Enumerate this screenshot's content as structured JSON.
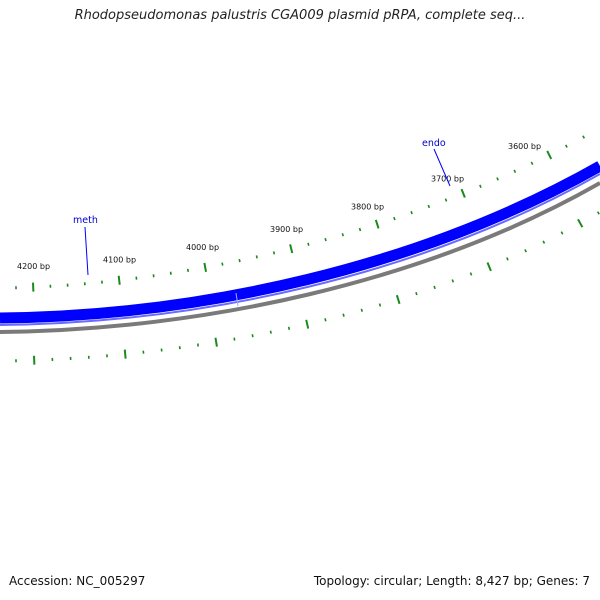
{
  "title": "Rhodopseudomonas palustris CGA009 plasmid pRPA, complete seq...",
  "footer": {
    "accession": "Accession: NC_005297",
    "summary": "Topology: circular; Length: 8,427 bp; Genes: 7"
  },
  "colors": {
    "gene_track": "#0000ff",
    "backbone": "#808080",
    "ticks": "#1a8a1a",
    "gene_label": "#0000cc"
  },
  "tick_labels": [
    {
      "text": "4200 bp",
      "bp": 4200
    },
    {
      "text": "4100 bp",
      "bp": 4100
    },
    {
      "text": "4000 bp",
      "bp": 4000
    },
    {
      "text": "3900 bp",
      "bp": 3900
    },
    {
      "text": "3800 bp",
      "bp": 3800
    },
    {
      "text": "3700 bp",
      "bp": 3700
    },
    {
      "text": "3600 bp",
      "bp": 3600
    }
  ],
  "genes": [
    {
      "name": "meth",
      "strand": "forward"
    },
    {
      "name": "endo",
      "strand": "forward"
    }
  ]
}
